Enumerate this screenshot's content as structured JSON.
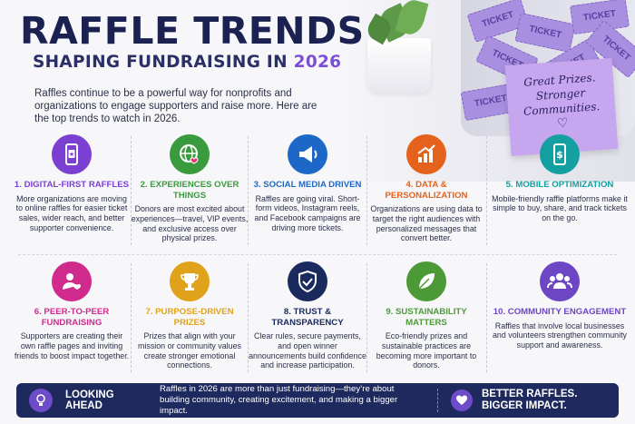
{
  "header": {
    "title": "RAFFLE TRENDS",
    "subtitle_prefix": "SHAPING FUNDRAISING IN ",
    "subtitle_year": "2026",
    "intro": "Raffles continue to be a powerful way for nonprofits and organizations to engage supporters and raise more. Here are the top trends to watch in 2026."
  },
  "decor": {
    "ticket_label": "TICKET",
    "note_lines": [
      "Great Prizes.",
      "Stronger",
      "Communities."
    ]
  },
  "trends": [
    {
      "title": "1. DIGITAL-FIRST RAFFLES",
      "desc": "More organizations are moving to online raffles for easier ticket sales, wider reach, and better supporter convenience.",
      "color": "#7b3fd1",
      "icon": "phone-ticket-icon"
    },
    {
      "title": "2. EXPERIENCES OVER THINGS",
      "desc": "Donors are most excited about experiences—travel, VIP events, and exclusive access over physical prizes.",
      "color": "#3a9a3e",
      "icon": "globe-heart-icon"
    },
    {
      "title": "3. SOCIAL MEDIA DRIVEN",
      "desc": "Raffles are going viral. Short-form videos, Instagram reels, and Facebook campaigns are driving more tickets.",
      "color": "#1d68c7",
      "icon": "megaphone-icon"
    },
    {
      "title": "4. DATA & PERSONALIZATION",
      "desc": "Organizations are using data to target the right audiences with personalized messages that convert better.",
      "color": "#e4621c",
      "icon": "chart-growth-icon"
    },
    {
      "title": "5. MOBILE OPTIMIZATION",
      "desc": "Mobile-friendly raffle platforms make it simple to buy, share, and track tickets on the go.",
      "color": "#14a0a0",
      "icon": "mobile-dollar-icon"
    },
    {
      "title": "6. PEER-TO-PEER FUNDRAISING",
      "desc": "Supporters are creating their own raffle pages and inviting friends to boost impact together.",
      "color": "#cf2a8c",
      "icon": "person-heart-icon"
    },
    {
      "title": "7. PURPOSE-DRIVEN PRIZES",
      "desc": "Prizes that align with your mission or community values create stronger emotional connections.",
      "color": "#e0a21a",
      "icon": "trophy-icon"
    },
    {
      "title": "8. TRUST & TRANSPARENCY",
      "desc": "Clear rules, secure payments, and open winner announcements build confidence and increase participation.",
      "color": "#1b2a5e",
      "icon": "shield-check-icon"
    },
    {
      "title": "9. SUSTAINABILITY MATTERS",
      "desc": "Eco-friendly prizes and sustainable practices are becoming more important to donors.",
      "color": "#4c9a37",
      "icon": "leaf-icon"
    },
    {
      "title": "10. COMMUNITY ENGAGEMENT",
      "desc": "Raffles that involve local businesses and volunteers strengthen community support and awareness.",
      "color": "#6d46c6",
      "icon": "people-group-icon"
    }
  ],
  "footer": {
    "label": "LOOKING AHEAD",
    "text": "Raffles in 2026 are more than just fundraising—they’re about building community, creating excitement, and making a bigger impact.",
    "tagline_1": "BETTER RAFFLES.",
    "tagline_2": "BIGGER IMPACT.",
    "bulb_icon": "lightbulb-icon",
    "heart_icon": "heart-icon"
  }
}
